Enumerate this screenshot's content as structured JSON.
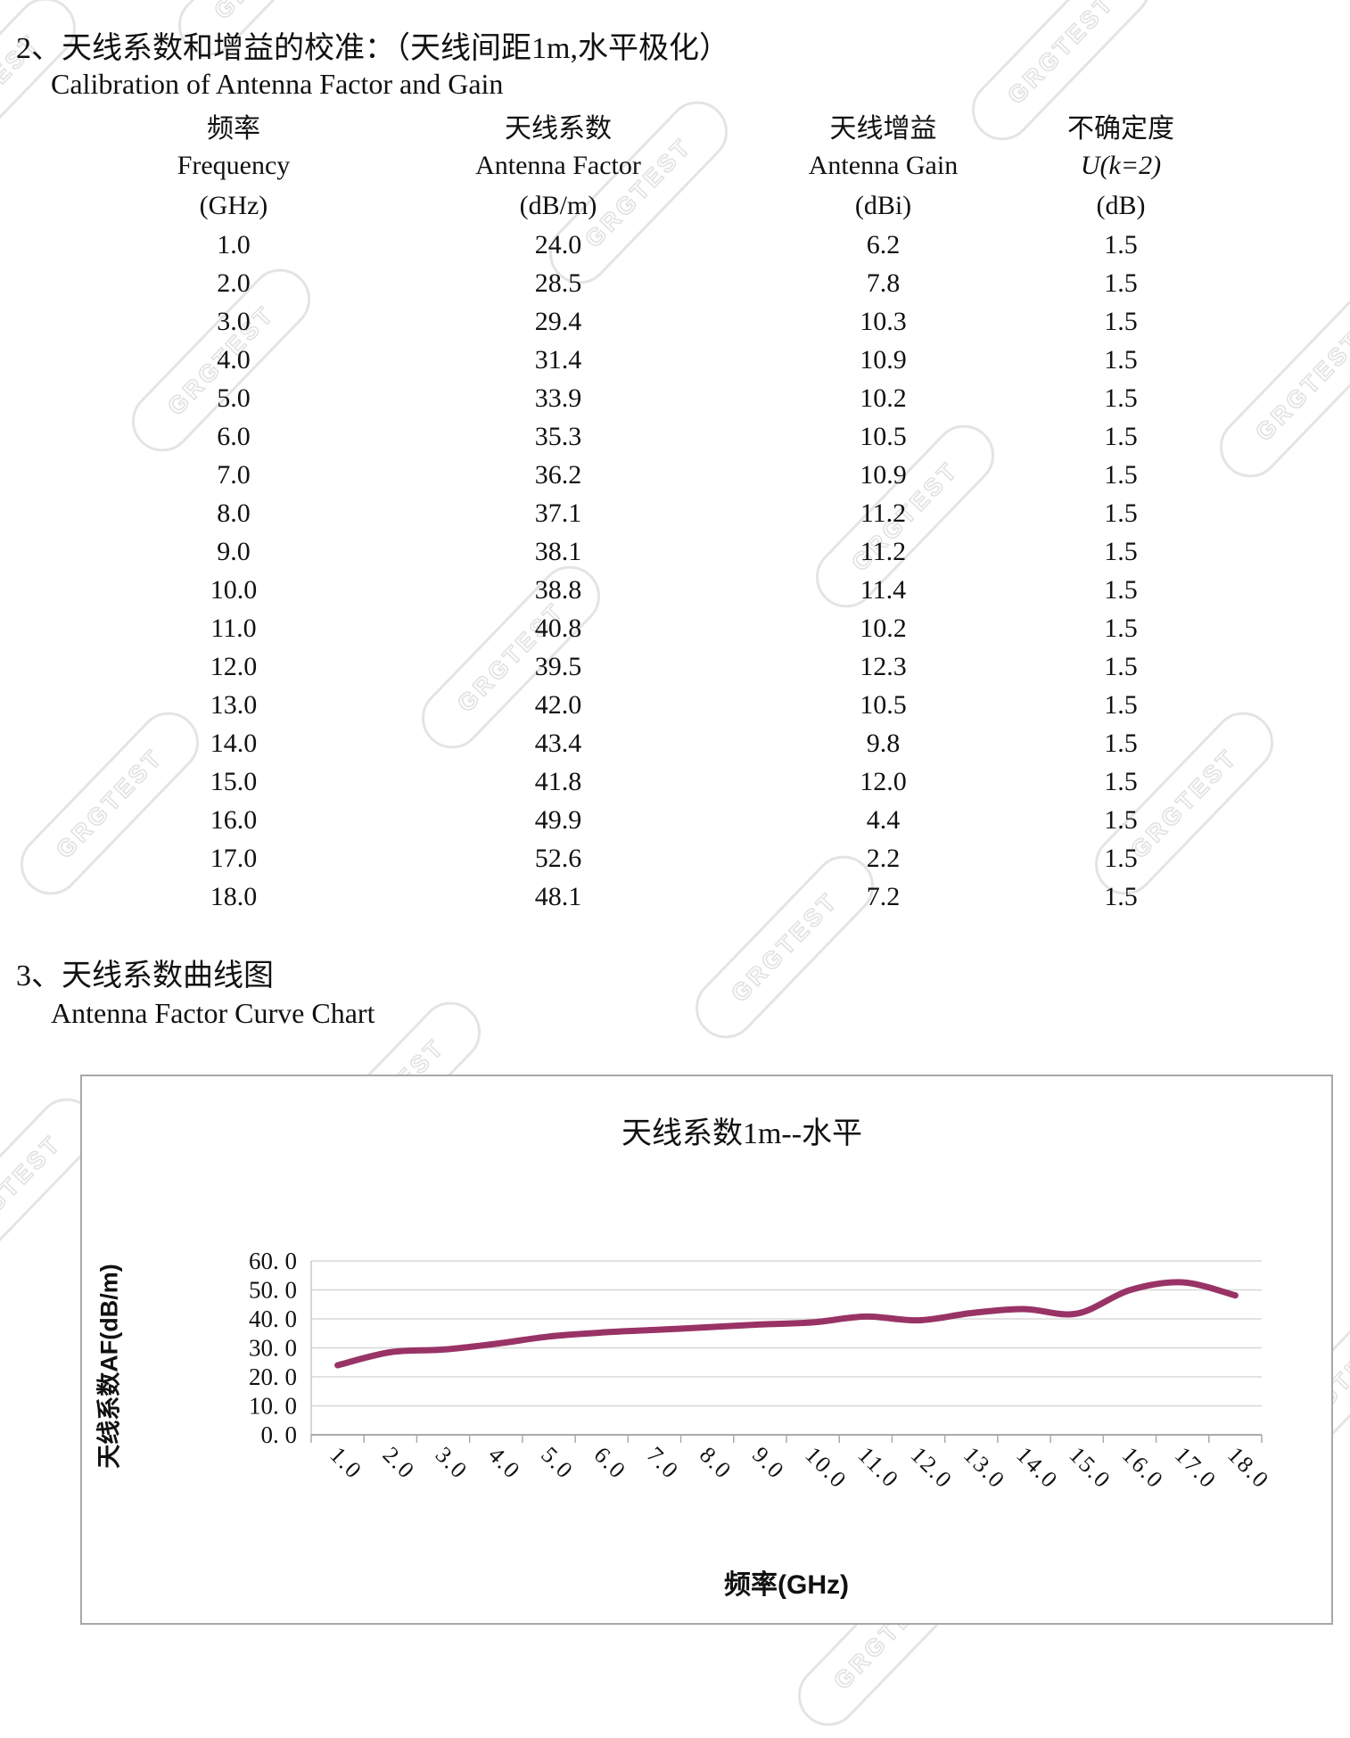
{
  "page": {
    "watermark_text": "GRGTEST",
    "section2": {
      "number": "2、",
      "title_zh": "天线系数和增益的校准：（天线间距1m,水平极化）",
      "title_en": "Calibration of Antenna Factor and Gain"
    },
    "section3": {
      "number": "3、",
      "title_zh": "天线系数曲线图",
      "title_en": "Antenna Factor Curve Chart"
    }
  },
  "table": {
    "columns": [
      {
        "zh": "频率",
        "en": "Frequency",
        "unit": "(GHz)"
      },
      {
        "zh": "天线系数",
        "en": "Antenna Factor",
        "unit": "(dB/m)"
      },
      {
        "zh": "天线增益",
        "en": "Antenna Gain",
        "unit": "(dBi)"
      },
      {
        "zh": "不确定度",
        "en": "U(k=2)",
        "unit": "(dB)"
      }
    ],
    "rows": [
      [
        "1.0",
        "24.0",
        "6.2",
        "1.5"
      ],
      [
        "2.0",
        "28.5",
        "7.8",
        "1.5"
      ],
      [
        "3.0",
        "29.4",
        "10.3",
        "1.5"
      ],
      [
        "4.0",
        "31.4",
        "10.9",
        "1.5"
      ],
      [
        "5.0",
        "33.9",
        "10.2",
        "1.5"
      ],
      [
        "6.0",
        "35.3",
        "10.5",
        "1.5"
      ],
      [
        "7.0",
        "36.2",
        "10.9",
        "1.5"
      ],
      [
        "8.0",
        "37.1",
        "11.2",
        "1.5"
      ],
      [
        "9.0",
        "38.1",
        "11.2",
        "1.5"
      ],
      [
        "10.0",
        "38.8",
        "11.4",
        "1.5"
      ],
      [
        "11.0",
        "40.8",
        "10.2",
        "1.5"
      ],
      [
        "12.0",
        "39.5",
        "12.3",
        "1.5"
      ],
      [
        "13.0",
        "42.0",
        "10.5",
        "1.5"
      ],
      [
        "14.0",
        "43.4",
        "9.8",
        "1.5"
      ],
      [
        "15.0",
        "41.8",
        "12.0",
        "1.5"
      ],
      [
        "16.0",
        "49.9",
        "4.4",
        "1.5"
      ],
      [
        "17.0",
        "52.6",
        "2.2",
        "1.5"
      ],
      [
        "18.0",
        "48.1",
        "7.2",
        "1.5"
      ]
    ]
  },
  "chart_data": {
    "type": "line",
    "title": "天线系数1m--水平",
    "xlabel": "频率(GHz)",
    "ylabel": "天线系数AF(dB/m)",
    "categories": [
      "1.0",
      "2.0",
      "3.0",
      "4.0",
      "5.0",
      "6.0",
      "7.0",
      "8.0",
      "9.0",
      "10.0",
      "11.0",
      "12.0",
      "13.0",
      "14.0",
      "15.0",
      "16.0",
      "17.0",
      "18.0"
    ],
    "values": [
      24.0,
      28.5,
      29.4,
      31.4,
      33.9,
      35.3,
      36.2,
      37.1,
      38.1,
      38.8,
      40.8,
      39.5,
      42.0,
      43.4,
      41.8,
      49.9,
      52.6,
      48.1
    ],
    "ylim": [
      0,
      60
    ],
    "y_ticks": [
      0,
      10,
      20,
      30,
      40,
      50,
      60
    ],
    "y_tick_labels": [
      "0. 0",
      "10. 0",
      "20. 0",
      "30. 0",
      "40. 0",
      "50. 0",
      "60. 0"
    ],
    "line_color": "#993366",
    "grid": true,
    "legend": false
  }
}
